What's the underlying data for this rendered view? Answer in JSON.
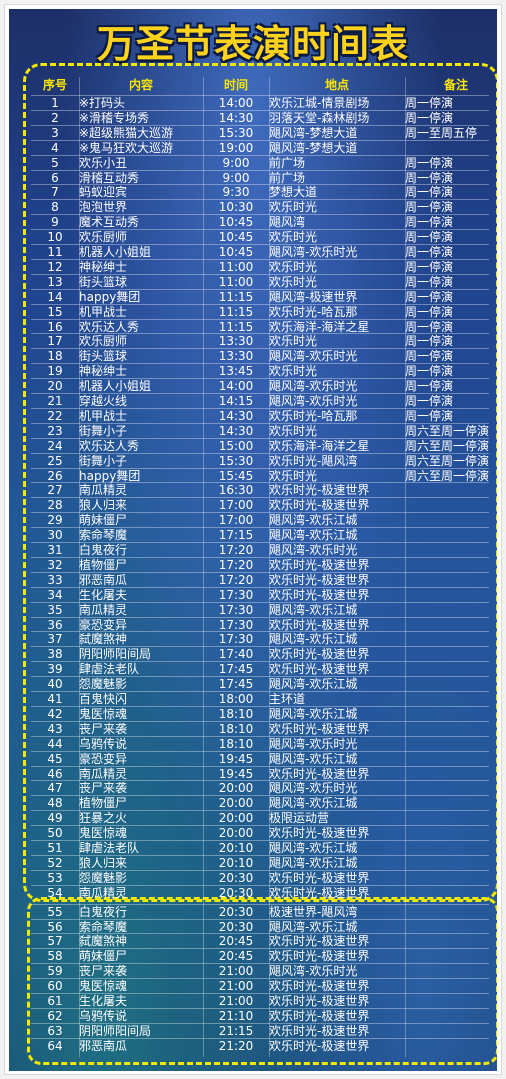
{
  "title": "万圣节表演时间表",
  "colors": {
    "title": "#ffd21c",
    "header_text": "#ffe600",
    "dashed_frame": "#f3e900",
    "cell_text": "#ffffff",
    "background": "#20418a"
  },
  "columns": [
    "序号",
    "内容",
    "时间",
    "地点",
    "备注"
  ],
  "rows": [
    [
      "1",
      "※打码头",
      "14:00",
      "欢乐江城-情景剧场",
      "周一停演"
    ],
    [
      "2",
      "※滑稽专场秀",
      "14:30",
      "羽落天堂-森林剧场",
      "周一停演"
    ],
    [
      "3",
      "※超级熊猫大巡游",
      "15:30",
      "飓风湾-梦想大道",
      "周一至周五停"
    ],
    [
      "4",
      "※鬼马狂欢大巡游",
      "19:00",
      "飓风湾-梦想大道",
      ""
    ],
    [
      "5",
      "欢乐小丑",
      "9:00",
      "前广场",
      "周一停演"
    ],
    [
      "6",
      "滑稽互动秀",
      "9:00",
      "前广场",
      "周一停演"
    ],
    [
      "7",
      "蚂蚁迎宾",
      "9:30",
      "梦想大道",
      "周一停演"
    ],
    [
      "8",
      "泡泡世界",
      "10:30",
      "欢乐时光",
      "周一停演"
    ],
    [
      "9",
      "魔术互动秀",
      "10:45",
      "飓风湾",
      "周一停演"
    ],
    [
      "10",
      "欢乐厨师",
      "10:45",
      "欢乐时光",
      "周一停演"
    ],
    [
      "11",
      "机器人小姐姐",
      "10:45",
      "飓风湾-欢乐时光",
      "周一停演"
    ],
    [
      "12",
      "神秘绅士",
      "11:00",
      "欢乐时光",
      "周一停演"
    ],
    [
      "13",
      "街头篮球",
      "11:00",
      "欢乐时光",
      "周一停演"
    ],
    [
      "14",
      "happy舞团",
      "11:15",
      "飓风湾-极速世界",
      "周一停演"
    ],
    [
      "15",
      "机甲战士",
      "11:15",
      "欢乐时光-哈瓦那",
      "周一停演"
    ],
    [
      "16",
      "欢乐达人秀",
      "11:15",
      "欢乐海洋-海洋之星",
      "周一停演"
    ],
    [
      "17",
      "欢乐厨师",
      "13:30",
      "欢乐时光",
      "周一停演"
    ],
    [
      "18",
      "街头篮球",
      "13:30",
      "飓风湾-欢乐时光",
      "周一停演"
    ],
    [
      "19",
      "神秘绅士",
      "13:45",
      "欢乐时光",
      "周一停演"
    ],
    [
      "20",
      "机器人小姐姐",
      "14:00",
      "飓风湾-欢乐时光",
      "周一停演"
    ],
    [
      "21",
      "穿越火线",
      "14:15",
      "飓风湾-欢乐时光",
      "周一停演"
    ],
    [
      "22",
      "机甲战士",
      "14:30",
      "欢乐时光-哈瓦那",
      "周一停演"
    ],
    [
      "23",
      "街舞小子",
      "14:30",
      "欢乐时光",
      "周六至周一停演"
    ],
    [
      "24",
      "欢乐达人秀",
      "15:00",
      "欢乐海洋-海洋之星",
      "周六至周一停演"
    ],
    [
      "25",
      "街舞小子",
      "15:30",
      "欢乐时光-飓风湾",
      "周六至周一停演"
    ],
    [
      "26",
      "happy舞团",
      "15:45",
      "欢乐时光",
      "周六至周一停演"
    ],
    [
      "27",
      "南瓜精灵",
      "16:30",
      "欢乐时光-极速世界",
      ""
    ],
    [
      "28",
      "狼人归来",
      "17:00",
      "欢乐时光-极速世界",
      ""
    ],
    [
      "29",
      "萌妹僵尸",
      "17:00",
      "飓风湾-欢乐江城",
      ""
    ],
    [
      "30",
      "索命琴魔",
      "17:15",
      "飓风湾-欢乐江城",
      ""
    ],
    [
      "31",
      "白鬼夜行",
      "17:20",
      "飓风湾-欢乐时光",
      ""
    ],
    [
      "32",
      "植物僵尸",
      "17:20",
      "欢乐时光-极速世界",
      ""
    ],
    [
      "33",
      "邪恶南瓜",
      "17:20",
      "欢乐时光-极速世界",
      ""
    ],
    [
      "34",
      "生化屠夫",
      "17:30",
      "欢乐时光-极速世界",
      ""
    ],
    [
      "35",
      "南瓜精灵",
      "17:30",
      "飓风湾-欢乐江城",
      ""
    ],
    [
      "36",
      "豪恐变异",
      "17:30",
      "欢乐时光-极速世界",
      ""
    ],
    [
      "37",
      "弑魔煞神",
      "17:30",
      "飓风湾-欢乐江城",
      ""
    ],
    [
      "38",
      "阴阳师阳间局",
      "17:40",
      "欢乐时光-极速世界",
      ""
    ],
    [
      "39",
      "肆虐法老队",
      "17:45",
      "欢乐时光-极速世界",
      ""
    ],
    [
      "40",
      "怨魔魅影",
      "17:45",
      "飓风湾-欢乐江城",
      ""
    ],
    [
      "41",
      "百鬼快闪",
      "18:00",
      "主环道",
      ""
    ],
    [
      "42",
      "鬼医惊魂",
      "18:10",
      "飓风湾-欢乐江城",
      ""
    ],
    [
      "43",
      "丧尸来袭",
      "18:10",
      "欢乐时光-极速世界",
      ""
    ],
    [
      "44",
      "乌鸦传说",
      "18:10",
      "飓风湾-欢乐时光",
      ""
    ],
    [
      "45",
      "豪恐变异",
      "19:45",
      "飓风湾-欢乐江城",
      ""
    ],
    [
      "46",
      "南瓜精灵",
      "19:45",
      "欢乐时光-极速世界",
      ""
    ],
    [
      "47",
      "丧尸来袭",
      "20:00",
      "飓风湾-欢乐时光",
      ""
    ],
    [
      "48",
      "植物僵尸",
      "20:00",
      "飓风湾-欢乐江城",
      ""
    ],
    [
      "49",
      "狂暴之火",
      "20:00",
      "极限运动营",
      ""
    ],
    [
      "50",
      "鬼医惊魂",
      "20:00",
      "欢乐时光-极速世界",
      ""
    ],
    [
      "51",
      "肆虐法老队",
      "20:10",
      "飓风湾-欢乐江城",
      ""
    ],
    [
      "52",
      "狼人归来",
      "20:10",
      "飓风湾-欢乐江城",
      ""
    ],
    [
      "53",
      "怨魔魅影",
      "20:30",
      "欢乐时光-极速世界",
      ""
    ],
    [
      "54",
      "南瓜精灵",
      "20:30",
      "欢乐时光-极速世界",
      ""
    ],
    [
      "55",
      "白鬼夜行",
      "20:30",
      "极速世界-飓风湾",
      ""
    ],
    [
      "56",
      "索命琴魔",
      "20:30",
      "飓风湾-欢乐江城",
      ""
    ],
    [
      "57",
      "弑魔煞神",
      "20:45",
      "欢乐时光-极速世界",
      ""
    ],
    [
      "58",
      "萌妹僵尸",
      "20:45",
      "欢乐时光-极速世界",
      ""
    ],
    [
      "59",
      "丧尸来袭",
      "21:00",
      "飓风湾-欢乐时光",
      ""
    ],
    [
      "60",
      "鬼医惊魂",
      "21:00",
      "欢乐时光-极速世界",
      ""
    ],
    [
      "61",
      "生化屠夫",
      "21:00",
      "欢乐时光-极速世界",
      ""
    ],
    [
      "62",
      "乌鸦传说",
      "21:10",
      "欢乐时光-极速世界",
      ""
    ],
    [
      "63",
      "阴阳师阳间局",
      "21:15",
      "欢乐时光-极速世界",
      ""
    ],
    [
      "64",
      "邪恶南瓜",
      "21:20",
      "欢乐时光-极速世界",
      ""
    ]
  ]
}
